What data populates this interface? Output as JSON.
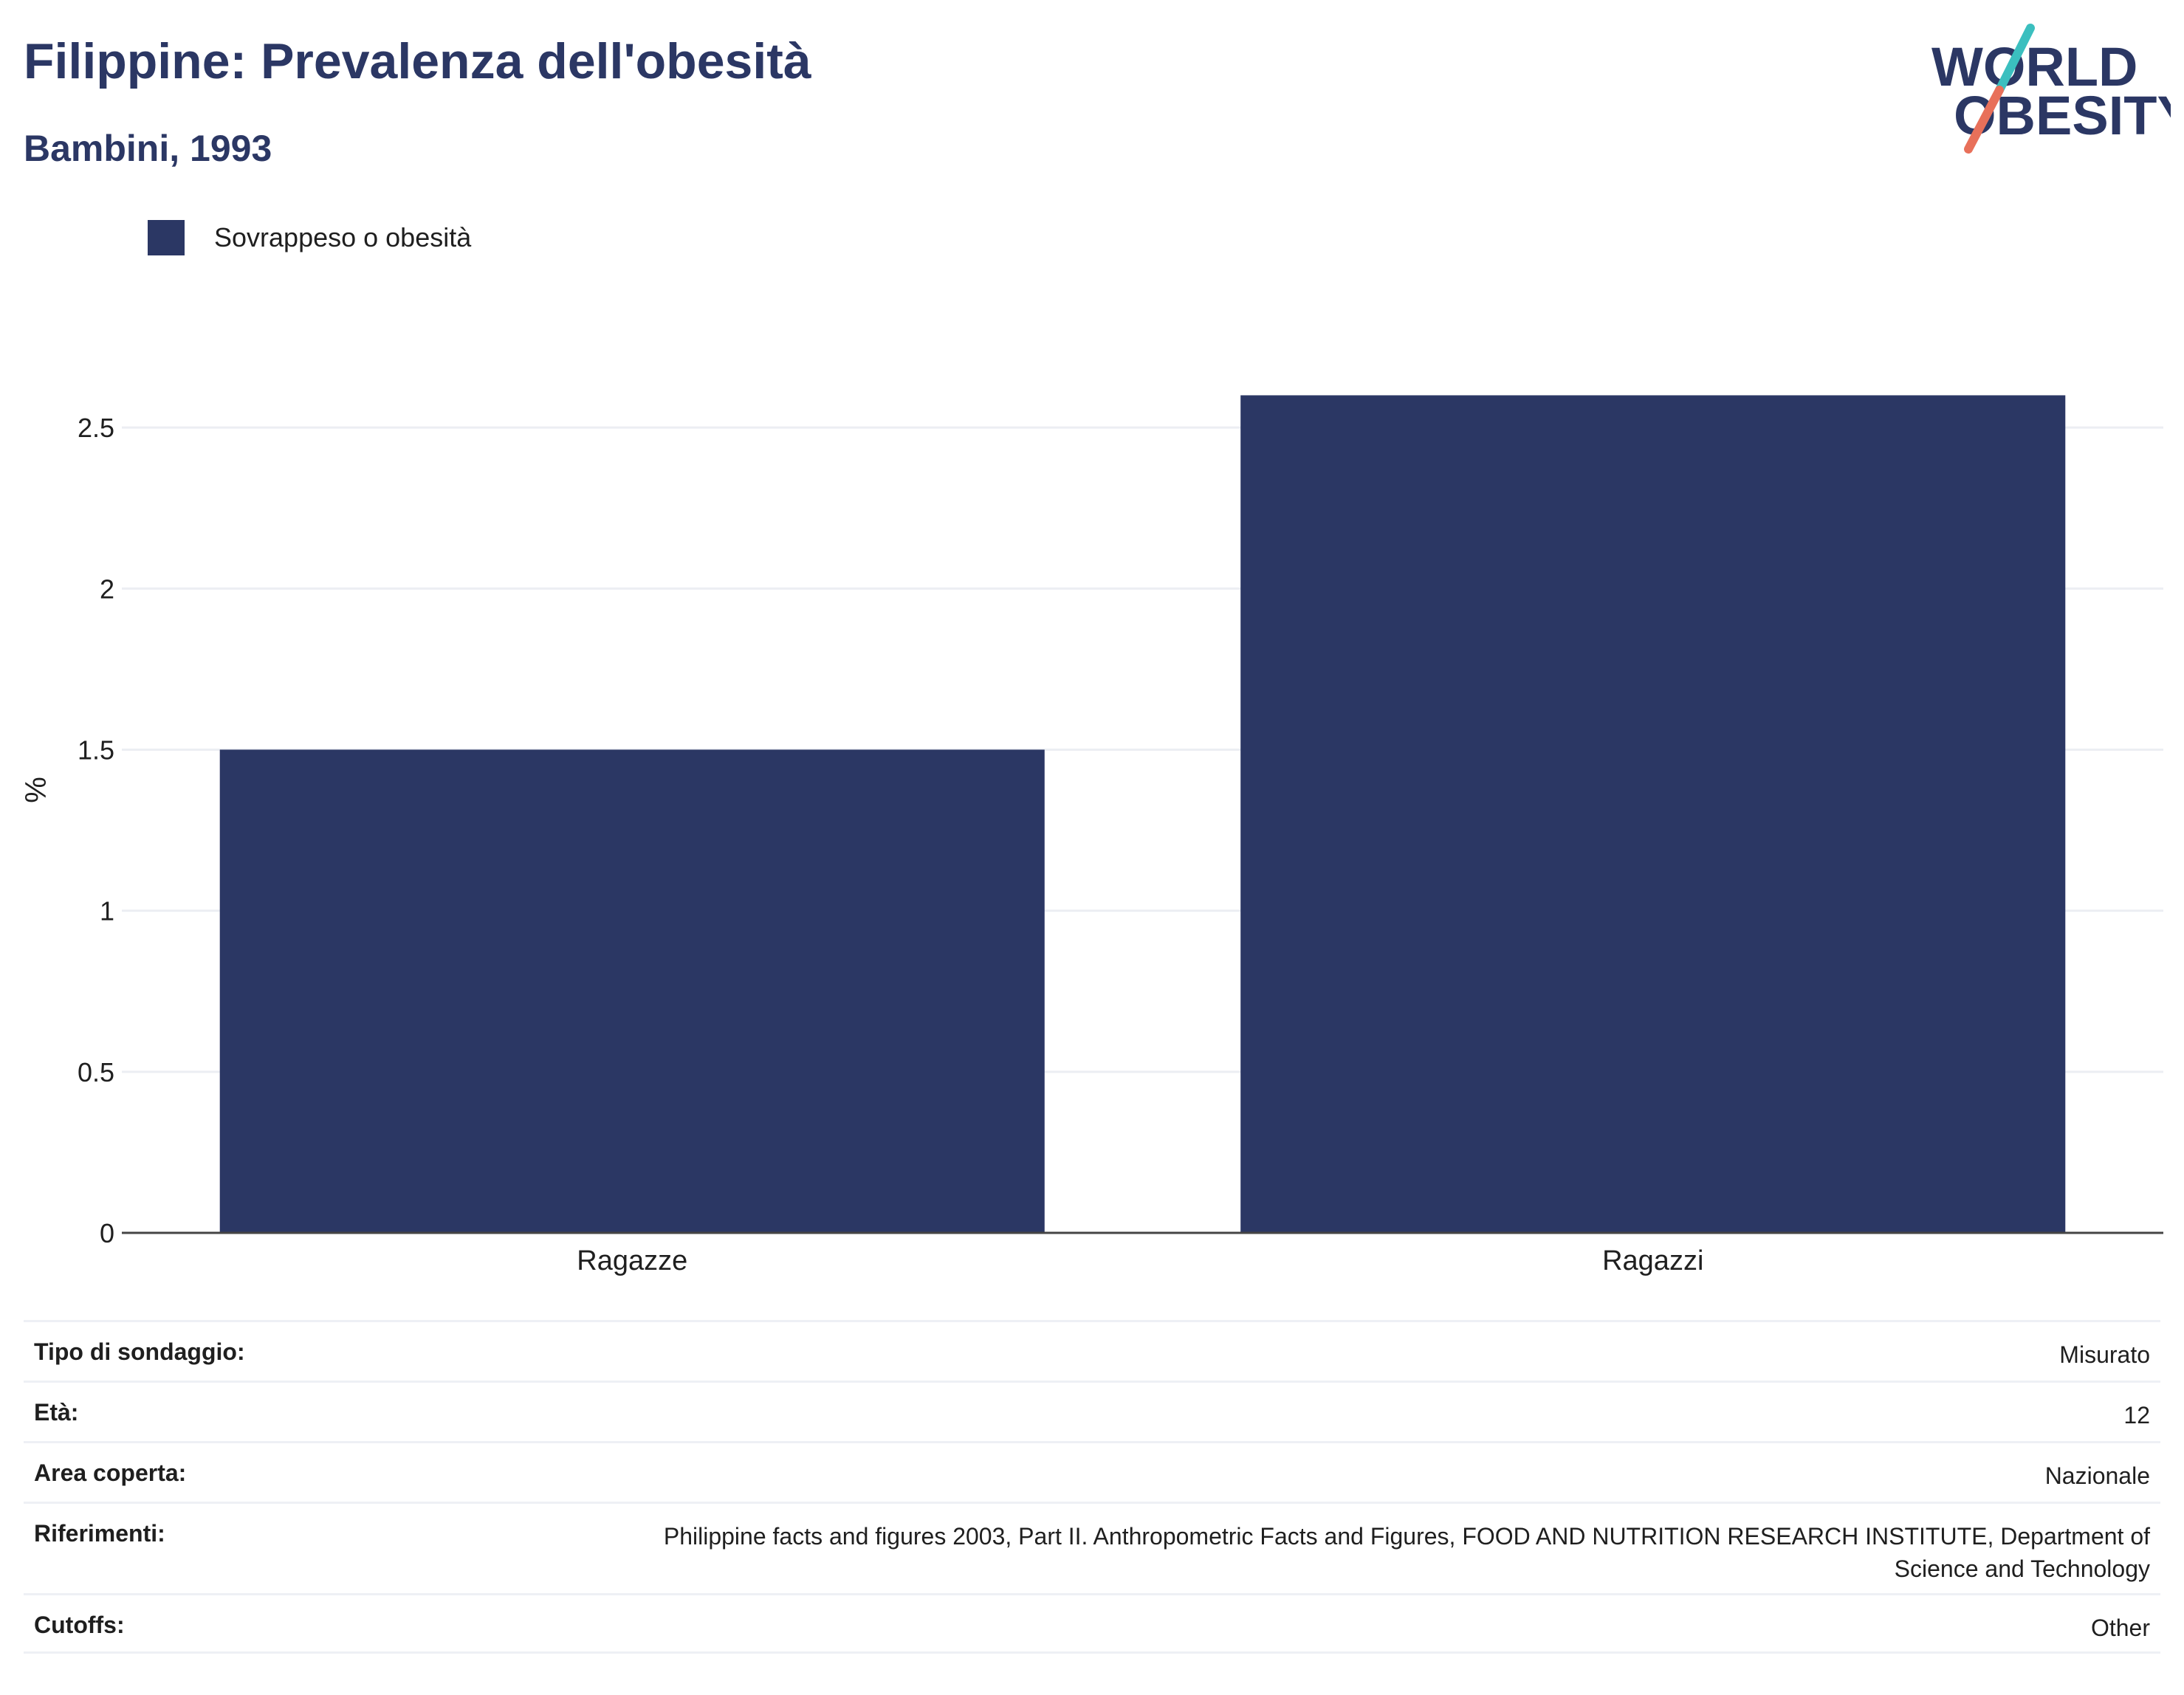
{
  "header": {
    "title": "Filippine: Prevalenza dell'obesità",
    "subtitle": "Bambini, 1993"
  },
  "logo": {
    "line1": "WORLD",
    "line2": "OBESITY",
    "colors": {
      "text": "#2b3764",
      "slash_top": "#3bbfbf",
      "slash_bottom": "#e8705a"
    }
  },
  "chart_data": {
    "type": "bar",
    "categories": [
      "Ragazze",
      "Ragazzi"
    ],
    "series": [
      {
        "name": "Sovrappeso o obesità",
        "values": [
          1.5,
          2.6
        ],
        "color": "#2b3764"
      }
    ],
    "ylabel": "%",
    "ylim": [
      0,
      2.75
    ],
    "yticks": [
      0,
      0.5,
      1,
      1.5,
      2,
      2.5
    ],
    "ytick_labels": [
      "0",
      "0.5",
      "1",
      "1.5",
      "2",
      "2.5"
    ],
    "grid": true,
    "legend_position": "top-left"
  },
  "info_table": [
    {
      "key": "Tipo di sondaggio:",
      "value": "Misurato"
    },
    {
      "key": "Età:",
      "value": "12"
    },
    {
      "key": "Area coperta:",
      "value": "Nazionale"
    },
    {
      "key": "Riferimenti:",
      "value": "Philippine facts and figures 2003, Part II. Anthropometric Facts and Figures, FOOD AND NUTRITION RESEARCH INSTITUTE, Department of Science and Technology"
    },
    {
      "key": "Cutoffs:",
      "value": "Other"
    }
  ]
}
